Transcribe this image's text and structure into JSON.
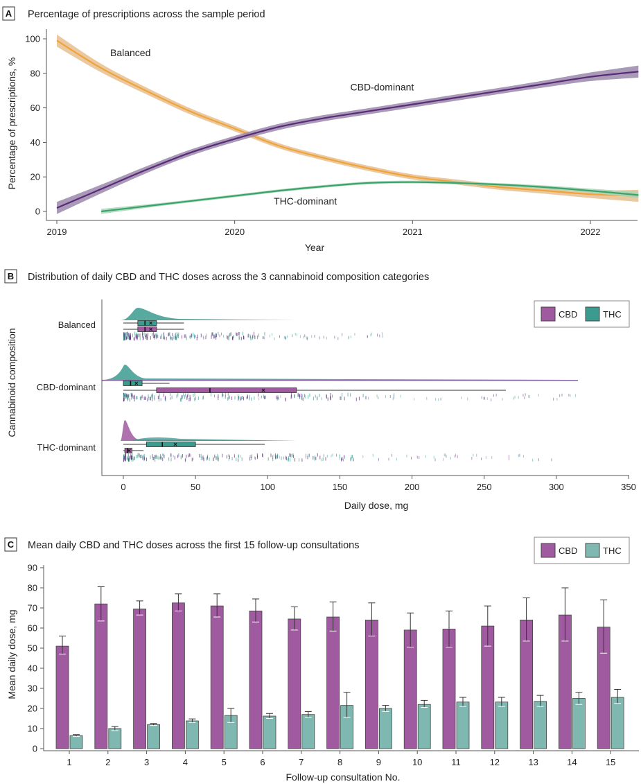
{
  "colors": {
    "balanced": "#f0a33a",
    "balanced_band": "#e8c08f",
    "cbd_dominant": "#5a2a78",
    "cbd_dominant_band": "#9a88aa",
    "thc_dominant": "#3aa36a",
    "thc_dominant_band": "#a9d5b8",
    "cbd": "#a05aa0",
    "thc": "#3b9b8f",
    "thc_bar": "#7fb8b0"
  },
  "chart_data": [
    {
      "id": "A",
      "type": "line",
      "panel_letter": "A",
      "title": "Percentage of prescriptions across the sample period",
      "xlabel": "Year",
      "ylabel": "Percentage of prescriptions, %",
      "xlim": [
        2019,
        2022.27
      ],
      "ylim": [
        -2,
        100
      ],
      "x_ticks": [
        2019,
        2020,
        2021,
        2022
      ],
      "y_ticks": [
        0,
        20,
        40,
        60,
        80,
        100
      ],
      "series": [
        {
          "name": "Balanced",
          "color_key": "balanced",
          "band_key": "balanced_band",
          "x": [
            2019.0,
            2019.25,
            2019.5,
            2019.75,
            2020.0,
            2020.25,
            2020.5,
            2020.75,
            2021.0,
            2021.25,
            2021.5,
            2021.75,
            2022.0,
            2022.27
          ],
          "y": [
            99,
            83,
            70,
            58,
            48,
            38,
            31,
            25,
            20,
            17,
            14,
            12,
            10,
            9
          ],
          "band": [
            3.5,
            2.5,
            2,
            1.8,
            1.6,
            1.5,
            1.5,
            1.5,
            1.5,
            1.5,
            1.6,
            1.8,
            2.2,
            3.5
          ]
        },
        {
          "name": "CBD-dominant",
          "color_key": "cbd_dominant",
          "band_key": "cbd_dominant_band",
          "x": [
            2019.0,
            2019.25,
            2019.5,
            2019.75,
            2020.0,
            2020.25,
            2020.5,
            2020.75,
            2021.0,
            2021.25,
            2021.5,
            2021.75,
            2022.0,
            2022.27
          ],
          "y": [
            2,
            13,
            24,
            34,
            42,
            49,
            54,
            58,
            62,
            66,
            70,
            74,
            78,
            81
          ],
          "band": [
            3.5,
            2.5,
            2,
            1.8,
            1.8,
            1.8,
            1.8,
            1.8,
            1.8,
            1.8,
            1.8,
            2,
            2.5,
            3.5
          ]
        },
        {
          "name": "THC-dominant",
          "color_key": "thc_dominant",
          "band_key": "thc_dominant_band",
          "x": [
            2019.25,
            2019.5,
            2019.75,
            2020.0,
            2020.25,
            2020.5,
            2020.75,
            2021.0,
            2021.25,
            2021.5,
            2021.75,
            2022.0,
            2022.27
          ],
          "y": [
            0,
            3,
            6,
            9,
            12,
            14.5,
            16.5,
            17,
            16.5,
            15.5,
            14,
            12,
            9.5
          ],
          "band": [
            1.5,
            1,
            0.8,
            0.8,
            0.8,
            0.8,
            0.8,
            0.8,
            0.8,
            0.8,
            1,
            1.2,
            1.8
          ]
        }
      ],
      "annotations": [
        {
          "text": "Balanced",
          "x": 2019.3,
          "y": 90
        },
        {
          "text": "CBD-dominant",
          "x": 2020.65,
          "y": 70
        },
        {
          "text": "THC-dominant",
          "x": 2020.22,
          "y": 4
        }
      ]
    },
    {
      "id": "B",
      "type": "box",
      "panel_letter": "B",
      "title": "Distribution of daily CBD and THC doses across the 3 cannabinoid composition categories",
      "xlabel": "Daily dose, mg",
      "ylabel": "Cannabinoid composition",
      "xlim": [
        -15,
        350
      ],
      "x_ticks": [
        0,
        50,
        100,
        150,
        200,
        250,
        300,
        350
      ],
      "legend": [
        "CBD",
        "THC"
      ],
      "legend_position": "top-right",
      "categories": [
        {
          "name": "Balanced",
          "thc_box": {
            "whisker_low": 0,
            "q1": 10,
            "median": 15,
            "q3": 23,
            "whisker_high": 42,
            "mean": 19
          },
          "cbd_box": {
            "whisker_low": 0,
            "q1": 10,
            "median": 15,
            "q3": 23,
            "whisker_high": 42,
            "mean": 19
          },
          "points_max": 180,
          "density_peak_dose": 10
        },
        {
          "name": "CBD-dominant",
          "thc_box": {
            "whisker_low": 0,
            "q1": 0,
            "median": 5,
            "q3": 13,
            "whisker_high": 32,
            "mean": 9
          },
          "cbd_box": {
            "whisker_low": 0,
            "q1": 23,
            "median": 60,
            "q3": 120,
            "whisker_high": 265,
            "mean": 97
          },
          "points_max": 315,
          "density_peak_dose": 1
        },
        {
          "name": "THC-dominant",
          "thc_box": {
            "whisker_low": 0,
            "q1": 16,
            "median": 27,
            "q3": 50,
            "whisker_high": 98,
            "mean": 36
          },
          "cbd_box": {
            "whisker_low": 0,
            "q1": 1,
            "median": 3,
            "q3": 6,
            "whisker_high": 14,
            "mean": 4
          },
          "points_max": 300,
          "density_peak_dose": 1
        }
      ]
    },
    {
      "id": "C",
      "type": "bar",
      "panel_letter": "C",
      "title": "Mean daily CBD and THC doses across the first 15 follow-up consultations",
      "xlabel": "Follow-up consultation No.",
      "ylabel": "Mean daily dose, mg",
      "ylim": [
        0,
        90
      ],
      "y_ticks": [
        0,
        10,
        20,
        30,
        40,
        50,
        60,
        70,
        80,
        90
      ],
      "legend": [
        "CBD",
        "THC"
      ],
      "legend_position": "top-right",
      "categories": [
        "1",
        "2",
        "3",
        "4",
        "5",
        "6",
        "7",
        "8",
        "9",
        "10",
        "11",
        "12",
        "13",
        "14",
        "15"
      ],
      "series": [
        {
          "name": "CBD",
          "color_key": "cbd",
          "values": [
            51,
            72,
            69.5,
            72.5,
            71,
            68.5,
            64.5,
            65.5,
            64,
            59,
            59.5,
            61,
            64,
            66.5,
            60.5
          ],
          "err_low": [
            47,
            63.5,
            66.5,
            68.5,
            65.5,
            63,
            59,
            58.5,
            56,
            50.5,
            50.5,
            51,
            53.5,
            53.5,
            47.5
          ],
          "err_high": [
            56,
            80.5,
            73.5,
            77,
            77,
            74.5,
            70.5,
            73,
            72.5,
            67.5,
            68.5,
            71,
            75,
            80,
            74
          ]
        },
        {
          "name": "THC",
          "color_key": "thc_bar",
          "values": [
            6.5,
            10,
            12,
            13.8,
            16.5,
            16.2,
            17,
            21.5,
            20,
            22,
            23.2,
            23.2,
            23.5,
            25,
            25.5
          ],
          "err_low": [
            6,
            9,
            11.5,
            13,
            13,
            15,
            15.5,
            15.5,
            18.5,
            20.5,
            21,
            21,
            21,
            22,
            22.5
          ],
          "err_high": [
            7,
            11,
            12.5,
            14.8,
            20,
            17.5,
            18.5,
            28,
            21.5,
            24,
            25.5,
            25.5,
            26.5,
            28,
            29.5
          ]
        }
      ]
    }
  ]
}
